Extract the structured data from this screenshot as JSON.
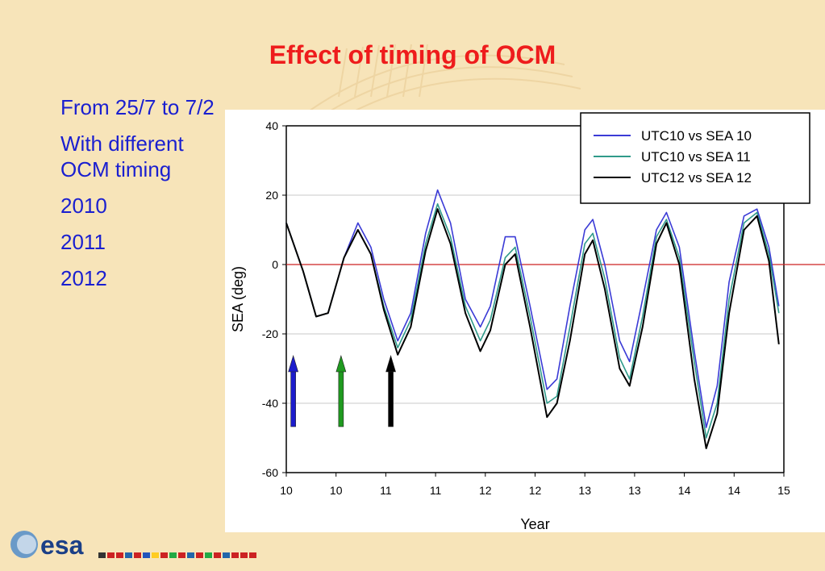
{
  "slide": {
    "title": "Effect of timing of OCM",
    "bullets": [
      "From 25/7 to 7/2",
      "With different OCM timing",
      "2010",
      "2011",
      "2012"
    ]
  },
  "logo": {
    "text": "esa"
  },
  "colors": {
    "background": "#f7e4b9",
    "title": "#ee1c1c",
    "bullets": "#1a1fd0",
    "zero_line": "#cc2222"
  },
  "chart_data": {
    "type": "line",
    "xlabel": "Year",
    "ylabel": "SEA (deg)",
    "xlim": [
      10.0,
      15.0
    ],
    "ylim": [
      -60,
      40
    ],
    "x_ticks": [
      "10",
      "10",
      "11",
      "11",
      "12",
      "12",
      "13",
      "13",
      "14",
      "14",
      "15"
    ],
    "y_ticks": [
      40,
      20,
      0,
      -20,
      -40,
      -60
    ],
    "grid": true,
    "legend_position": "top-right",
    "reference_line": 0,
    "series": [
      {
        "name": "UTC10 vs   SEA 10",
        "color": "#3b3bd6",
        "points": [
          [
            10.0,
            12
          ],
          [
            10.17,
            -2
          ],
          [
            10.3,
            -15
          ],
          [
            10.42,
            -14
          ],
          [
            10.58,
            2
          ],
          [
            10.72,
            12
          ],
          [
            10.85,
            5
          ],
          [
            10.98,
            -10
          ],
          [
            11.12,
            -22
          ],
          [
            11.25,
            -14
          ],
          [
            11.4,
            9
          ],
          [
            11.52,
            21.5
          ],
          [
            11.65,
            12
          ],
          [
            11.8,
            -10
          ],
          [
            11.95,
            -18
          ],
          [
            12.05,
            -12
          ],
          [
            12.2,
            8
          ],
          [
            12.3,
            8
          ],
          [
            12.45,
            -12
          ],
          [
            12.62,
            -36
          ],
          [
            12.72,
            -33
          ],
          [
            12.85,
            -12
          ],
          [
            13.0,
            10
          ],
          [
            13.08,
            13
          ],
          [
            13.2,
            0
          ],
          [
            13.35,
            -22
          ],
          [
            13.45,
            -28
          ],
          [
            13.58,
            -10
          ],
          [
            13.72,
            10
          ],
          [
            13.82,
            15
          ],
          [
            13.95,
            5
          ],
          [
            14.1,
            -25
          ],
          [
            14.22,
            -47
          ],
          [
            14.33,
            -35
          ],
          [
            14.45,
            -5
          ],
          [
            14.6,
            14
          ],
          [
            14.73,
            16
          ],
          [
            14.85,
            5
          ],
          [
            14.95,
            -12
          ]
        ]
      },
      {
        "name": "UTC10 vs   SEA  11",
        "color": "#2f9a8a",
        "points": [
          [
            10.0,
            12
          ],
          [
            10.17,
            -2
          ],
          [
            10.3,
            -15
          ],
          [
            10.42,
            -14
          ],
          [
            10.58,
            2
          ],
          [
            10.72,
            10
          ],
          [
            10.85,
            3
          ],
          [
            10.98,
            -12
          ],
          [
            11.12,
            -24
          ],
          [
            11.25,
            -16
          ],
          [
            11.4,
            6
          ],
          [
            11.52,
            17.5
          ],
          [
            11.65,
            8
          ],
          [
            11.8,
            -12
          ],
          [
            11.95,
            -22
          ],
          [
            12.05,
            -16
          ],
          [
            12.2,
            2
          ],
          [
            12.3,
            5
          ],
          [
            12.45,
            -15
          ],
          [
            12.62,
            -40
          ],
          [
            12.72,
            -38
          ],
          [
            12.85,
            -18
          ],
          [
            13.0,
            6
          ],
          [
            13.08,
            9
          ],
          [
            13.2,
            -4
          ],
          [
            13.35,
            -27
          ],
          [
            13.45,
            -33
          ],
          [
            13.58,
            -15
          ],
          [
            13.72,
            8
          ],
          [
            13.82,
            13
          ],
          [
            13.95,
            2
          ],
          [
            14.1,
            -28
          ],
          [
            14.22,
            -50
          ],
          [
            14.33,
            -40
          ],
          [
            14.45,
            -10
          ],
          [
            14.6,
            12
          ],
          [
            14.73,
            15
          ],
          [
            14.85,
            3
          ],
          [
            14.95,
            -14
          ]
        ]
      },
      {
        "name": "UTC12 vs   SEA 12",
        "color": "#000000",
        "points": [
          [
            10.0,
            12
          ],
          [
            10.17,
            -2
          ],
          [
            10.3,
            -15
          ],
          [
            10.42,
            -14
          ],
          [
            10.58,
            2
          ],
          [
            10.72,
            10
          ],
          [
            10.85,
            3
          ],
          [
            10.98,
            -13
          ],
          [
            11.12,
            -26
          ],
          [
            11.25,
            -18
          ],
          [
            11.4,
            4
          ],
          [
            11.52,
            16
          ],
          [
            11.65,
            6
          ],
          [
            11.8,
            -14
          ],
          [
            11.95,
            -25
          ],
          [
            12.05,
            -19
          ],
          [
            12.2,
            0
          ],
          [
            12.3,
            3
          ],
          [
            12.45,
            -18
          ],
          [
            12.62,
            -44
          ],
          [
            12.72,
            -40
          ],
          [
            12.85,
            -22
          ],
          [
            13.0,
            3
          ],
          [
            13.08,
            7
          ],
          [
            13.2,
            -7
          ],
          [
            13.35,
            -30
          ],
          [
            13.45,
            -35
          ],
          [
            13.58,
            -18
          ],
          [
            13.72,
            6
          ],
          [
            13.82,
            12
          ],
          [
            13.95,
            0
          ],
          [
            14.1,
            -33
          ],
          [
            14.22,
            -53
          ],
          [
            14.33,
            -43
          ],
          [
            14.45,
            -14
          ],
          [
            14.6,
            10
          ],
          [
            14.73,
            14
          ],
          [
            14.85,
            1
          ],
          [
            14.95,
            -23
          ]
        ]
      }
    ],
    "arrows": [
      {
        "x": 10.07,
        "color": "#1c1ccc"
      },
      {
        "x": 10.55,
        "color": "#1f9a1f"
      },
      {
        "x": 11.05,
        "color": "#000000"
      }
    ]
  }
}
